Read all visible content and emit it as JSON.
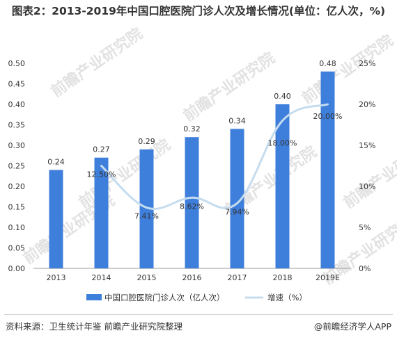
{
  "title": "图表2：2013-2019年中国口腔医院门诊人次及增长情况(单位：亿人次，%)",
  "watermark": "前瞻产业研究院",
  "source": "资料来源：卫生统计年鉴 前瞻产业研究院整理",
  "brand": "@前瞻经济学人APP",
  "colors": {
    "bar": "#3f7fdc",
    "line": "#c5dcef",
    "axis": "#999999",
    "text": "#333333"
  },
  "chart_data": {
    "type": "bar+line",
    "categories": [
      "2013",
      "2014",
      "2015",
      "2016",
      "2017",
      "2018",
      "2019E"
    ],
    "series": [
      {
        "name": "中国口腔医院门诊人次（亿人次）",
        "type": "bar",
        "axis": "left",
        "values": [
          0.24,
          0.27,
          0.29,
          0.32,
          0.34,
          0.4,
          0.48
        ],
        "labels": [
          "0.24",
          "0.27",
          "0.29",
          "0.32",
          "0.34",
          "0.40",
          "0.48"
        ]
      },
      {
        "name": "增速（%）",
        "type": "line",
        "axis": "right",
        "values": [
          null,
          12.5,
          7.41,
          8.62,
          7.94,
          18.0,
          20.0
        ],
        "labels": [
          "",
          "12.50%",
          "7.41%",
          "8.62%",
          "7.94%",
          "18.00%",
          "20.00%"
        ]
      }
    ],
    "y_left": {
      "min": 0,
      "max": 0.5,
      "ticks": [
        "0.00",
        "0.05",
        "0.10",
        "0.15",
        "0.20",
        "0.25",
        "0.30",
        "0.35",
        "0.40",
        "0.45",
        "0.50"
      ]
    },
    "y_right": {
      "min": 0,
      "max": 25,
      "ticks": [
        "0%",
        "5%",
        "10%",
        "15%",
        "20%",
        "25%"
      ]
    },
    "grid": false,
    "legend": "bottom"
  }
}
